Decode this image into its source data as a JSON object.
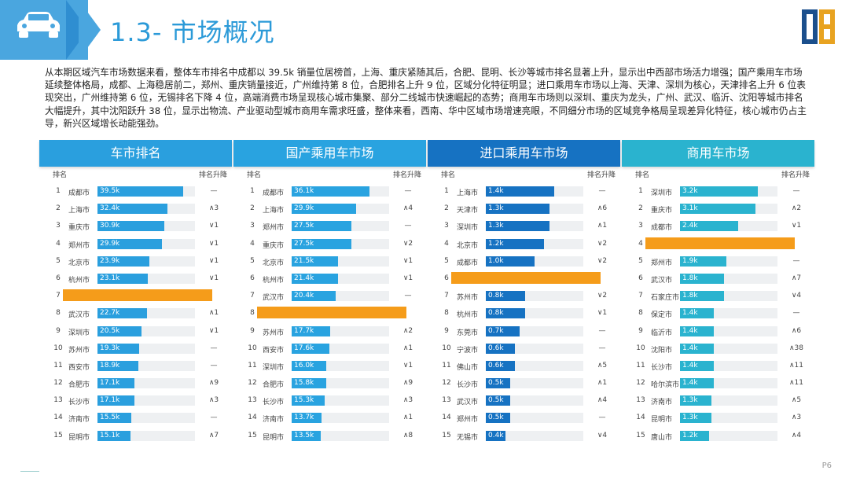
{
  "header": {
    "title": "1.3- 市场概况",
    "icon": "car-icon",
    "brand_color": "#2b9ad8"
  },
  "intro": "从本期区域汽车市场数据来看，整体车市排名中成都以 39.5k 销量位居榜首，上海、重庆紧随其后，合肥、昆明、长沙等城市排名显著上升，显示出中西部市场活力增强；国产乘用车市场延续整体格局，成都、上海稳居前二，郑州、重庆销量接近，广州维持第 8 位，合肥排名上升 9 位，区域分化特征明显；进口乘用车市场以上海、天津、深圳为核心，天津排名上升 6 位表现突出，广州维持第 6 位，无锡排名下降 4 位，高端消费市场呈现核心城市集聚、部分二线城市快速崛起的态势；商用车市场则以深圳、重庆为龙头，广州、武汉、临沂、沈阳等城市排名大幅提升，其中沈阳跃升 38 位，显示出物流、产业驱动型城市商用车需求旺盛，整体来看，西南、华中区域市场增速亮眼，不同细分市场的区域竞争格局呈现差异化特征，核心城市仍占主导，新兴区域增长动能强劲。",
  "colors": {
    "highlight": "#f59c1a",
    "track": "#eef0f2"
  },
  "panels": [
    {
      "title": "车市排名",
      "head_color": "#2a9fde",
      "bar_color": "#2a9fde",
      "col_rank": "排名",
      "col_change": "排名升降",
      "max": 45,
      "rows": [
        {
          "rank": "1",
          "city": "成都市",
          "value": 39.5,
          "label": "39.5k",
          "change": "—"
        },
        {
          "rank": "2",
          "city": "上海市",
          "value": 32.4,
          "label": "32.4k",
          "change": "∧3"
        },
        {
          "rank": "3",
          "city": "重庆市",
          "value": 30.9,
          "label": "30.9k",
          "change": "∨1"
        },
        {
          "rank": "4",
          "city": "郑州市",
          "value": 29.9,
          "label": "29.9k",
          "change": "∨1"
        },
        {
          "rank": "5",
          "city": "北京市",
          "value": 23.9,
          "label": "23.9k",
          "change": "∨1"
        },
        {
          "rank": "6",
          "city": "杭州市",
          "value": 23.1,
          "label": "23.1k",
          "change": "∨1"
        },
        {
          "rank": "7",
          "city": "",
          "value": null,
          "label": "",
          "change": "",
          "highlight": true
        },
        {
          "rank": "8",
          "city": "武汉市",
          "value": 22.7,
          "label": "22.7k",
          "change": "∧1"
        },
        {
          "rank": "9",
          "city": "深圳市",
          "value": 20.5,
          "label": "20.5k",
          "change": "∨1"
        },
        {
          "rank": "10",
          "city": "苏州市",
          "value": 19.3,
          "label": "19.3k",
          "change": "—"
        },
        {
          "rank": "11",
          "city": "西安市",
          "value": 18.9,
          "label": "18.9k",
          "change": "—"
        },
        {
          "rank": "12",
          "city": "合肥市",
          "value": 17.1,
          "label": "17.1k",
          "change": "∧9"
        },
        {
          "rank": "13",
          "city": "长沙市",
          "value": 17.1,
          "label": "17.1k",
          "change": "∧3"
        },
        {
          "rank": "14",
          "city": "济南市",
          "value": 15.5,
          "label": "15.5k",
          "change": "—"
        },
        {
          "rank": "15",
          "city": "昆明市",
          "value": 15.1,
          "label": "15.1k",
          "change": "∧7"
        }
      ]
    },
    {
      "title": "国产乘用车市场",
      "head_color": "#29a3e0",
      "bar_color": "#29a3e0",
      "col_rank": "排名",
      "col_change": "排名升降",
      "max": 45,
      "rows": [
        {
          "rank": "1",
          "city": "成都市",
          "value": 36.1,
          "label": "36.1k",
          "change": "—"
        },
        {
          "rank": "2",
          "city": "上海市",
          "value": 29.9,
          "label": "29.9k",
          "change": "∧4"
        },
        {
          "rank": "3",
          "city": "郑州市",
          "value": 27.5,
          "label": "27.5k",
          "change": "—"
        },
        {
          "rank": "4",
          "city": "重庆市",
          "value": 27.5,
          "label": "27.5k",
          "change": "∨2"
        },
        {
          "rank": "5",
          "city": "北京市",
          "value": 21.5,
          "label": "21.5k",
          "change": "∨1"
        },
        {
          "rank": "6",
          "city": "杭州市",
          "value": 21.4,
          "label": "21.4k",
          "change": "∨1"
        },
        {
          "rank": "7",
          "city": "武汉市",
          "value": 20.4,
          "label": "20.4k",
          "change": "—"
        },
        {
          "rank": "8",
          "city": "",
          "value": null,
          "label": "",
          "change": "",
          "highlight": true
        },
        {
          "rank": "9",
          "city": "苏州市",
          "value": 17.7,
          "label": "17.7k",
          "change": "∧2"
        },
        {
          "rank": "10",
          "city": "西安市",
          "value": 17.6,
          "label": "17.6k",
          "change": "∧1"
        },
        {
          "rank": "11",
          "city": "深圳市",
          "value": 16.0,
          "label": "16.0k",
          "change": "∨1"
        },
        {
          "rank": "12",
          "city": "合肥市",
          "value": 15.8,
          "label": "15.8k",
          "change": "∧9"
        },
        {
          "rank": "13",
          "city": "长沙市",
          "value": 15.3,
          "label": "15.3k",
          "change": "∧3"
        },
        {
          "rank": "14",
          "city": "济南市",
          "value": 13.7,
          "label": "13.7k",
          "change": "∧1"
        },
        {
          "rank": "15",
          "city": "昆明市",
          "value": 13.5,
          "label": "13.5k",
          "change": "∧8"
        }
      ]
    },
    {
      "title": "进口乘用车市场",
      "head_color": "#1672c2",
      "bar_color": "#1672c2",
      "col_rank": "排名",
      "col_change": "排名升降",
      "max": 2.0,
      "rows": [
        {
          "rank": "1",
          "city": "上海市",
          "value": 1.4,
          "label": "1.4k",
          "change": "—"
        },
        {
          "rank": "2",
          "city": "天津市",
          "value": 1.3,
          "label": "1.3k",
          "change": "∧6"
        },
        {
          "rank": "3",
          "city": "深圳市",
          "value": 1.3,
          "label": "1.3k",
          "change": "∧1"
        },
        {
          "rank": "4",
          "city": "北京市",
          "value": 1.2,
          "label": "1.2k",
          "change": "∨2"
        },
        {
          "rank": "5",
          "city": "成都市",
          "value": 1.0,
          "label": "1.0k",
          "change": "∨2"
        },
        {
          "rank": "6",
          "city": "",
          "value": null,
          "label": "",
          "change": "",
          "highlight": true
        },
        {
          "rank": "7",
          "city": "苏州市",
          "value": 0.8,
          "label": "0.8k",
          "change": "∨2"
        },
        {
          "rank": "8",
          "city": "杭州市",
          "value": 0.8,
          "label": "0.8k",
          "change": "∨1"
        },
        {
          "rank": "9",
          "city": "东莞市",
          "value": 0.7,
          "label": "0.7k",
          "change": "—"
        },
        {
          "rank": "10",
          "city": "宁波市",
          "value": 0.6,
          "label": "0.6k",
          "change": "—"
        },
        {
          "rank": "11",
          "city": "佛山市",
          "value": 0.6,
          "label": "0.6k",
          "change": "∧5"
        },
        {
          "rank": "12",
          "city": "长沙市",
          "value": 0.5,
          "label": "0.5k",
          "change": "∧1"
        },
        {
          "rank": "13",
          "city": "武汉市",
          "value": 0.5,
          "label": "0.5k",
          "change": "∧4"
        },
        {
          "rank": "14",
          "city": "郑州市",
          "value": 0.5,
          "label": "0.5k",
          "change": "—"
        },
        {
          "rank": "15",
          "city": "无锡市",
          "value": 0.4,
          "label": "0.4k",
          "change": "∨4"
        }
      ]
    },
    {
      "title": "商用车市场",
      "head_color": "#2ab3cf",
      "bar_color": "#2ab3cf",
      "col_rank": "排名",
      "col_change": "排名升降",
      "max": 4.0,
      "rows": [
        {
          "rank": "1",
          "city": "深圳市",
          "value": 3.2,
          "label": "3.2k",
          "change": "—"
        },
        {
          "rank": "2",
          "city": "重庆市",
          "value": 3.1,
          "label": "3.1k",
          "change": "∧2"
        },
        {
          "rank": "3",
          "city": "成都市",
          "value": 2.4,
          "label": "2.4k",
          "change": "∨1"
        },
        {
          "rank": "4",
          "city": "",
          "value": null,
          "label": "",
          "change": "",
          "highlight": true
        },
        {
          "rank": "5",
          "city": "郑州市",
          "value": 1.9,
          "label": "1.9k",
          "change": "—"
        },
        {
          "rank": "6",
          "city": "武汉市",
          "value": 1.8,
          "label": "1.8k",
          "change": "∧7"
        },
        {
          "rank": "7",
          "city": "石家庄市",
          "value": 1.8,
          "label": "1.8k",
          "change": "∨4"
        },
        {
          "rank": "8",
          "city": "保定市",
          "value": 1.4,
          "label": "1.4k",
          "change": "—"
        },
        {
          "rank": "9",
          "city": "临沂市",
          "value": 1.4,
          "label": "1.4k",
          "change": "∧6"
        },
        {
          "rank": "10",
          "city": "沈阳市",
          "value": 1.4,
          "label": "1.4k",
          "change": "∧38"
        },
        {
          "rank": "11",
          "city": "长沙市",
          "value": 1.4,
          "label": "1.4k",
          "change": "∧11"
        },
        {
          "rank": "12",
          "city": "哈尔滨市",
          "value": 1.4,
          "label": "1.4k",
          "change": "∧11"
        },
        {
          "rank": "13",
          "city": "济南市",
          "value": 1.3,
          "label": "1.3k",
          "change": "∧5"
        },
        {
          "rank": "14",
          "city": "昆明市",
          "value": 1.3,
          "label": "1.3k",
          "change": "∧3"
        },
        {
          "rank": "15",
          "city": "唐山市",
          "value": 1.2,
          "label": "1.2k",
          "change": "∧4"
        }
      ]
    }
  ],
  "footer": {
    "page": "P6"
  }
}
